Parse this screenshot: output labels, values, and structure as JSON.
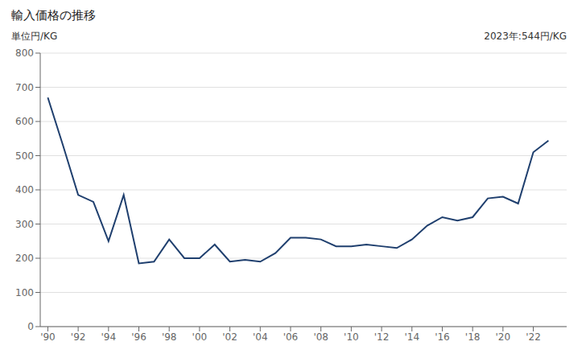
{
  "chart_data": {
    "type": "line",
    "title": "輸入価格の推移",
    "ylabel": "単位円/KG",
    "annotation": "2023年:544円/KG",
    "color": "#1f3f6e",
    "x": [
      1990,
      1991,
      1992,
      1993,
      1994,
      1995,
      1996,
      1997,
      1998,
      1999,
      2000,
      2001,
      2002,
      2003,
      2004,
      2005,
      2006,
      2007,
      2008,
      2009,
      2010,
      2011,
      2012,
      2013,
      2014,
      2015,
      2016,
      2017,
      2018,
      2019,
      2020,
      2021,
      2022,
      2023
    ],
    "values": [
      670,
      530,
      385,
      365,
      250,
      385,
      185,
      190,
      255,
      200,
      200,
      240,
      190,
      195,
      190,
      215,
      260,
      260,
      255,
      235,
      235,
      240,
      235,
      230,
      255,
      295,
      320,
      310,
      320,
      375,
      380,
      360,
      510,
      544
    ],
    "xlim": [
      1989.5,
      2024.2
    ],
    "xticks": [
      {
        "value": 1990,
        "label": "'90"
      },
      {
        "value": 1992,
        "label": "'92"
      },
      {
        "value": 1994,
        "label": "'94"
      },
      {
        "value": 1996,
        "label": "'96"
      },
      {
        "value": 1998,
        "label": "'98"
      },
      {
        "value": 2000,
        "label": "'00"
      },
      {
        "value": 2002,
        "label": "'02"
      },
      {
        "value": 2004,
        "label": "'04"
      },
      {
        "value": 2006,
        "label": "'06"
      },
      {
        "value": 2008,
        "label": "'08"
      },
      {
        "value": 2010,
        "label": "'10"
      },
      {
        "value": 2012,
        "label": "'12"
      },
      {
        "value": 2014,
        "label": "'14"
      },
      {
        "value": 2016,
        "label": "'16"
      },
      {
        "value": 2018,
        "label": "'18"
      },
      {
        "value": 2020,
        "label": "'20"
      },
      {
        "value": 2022,
        "label": "'22"
      }
    ],
    "ylim": [
      0,
      800
    ],
    "yticks": [
      0,
      100,
      200,
      300,
      400,
      500,
      600,
      700,
      800
    ],
    "grid": true
  }
}
